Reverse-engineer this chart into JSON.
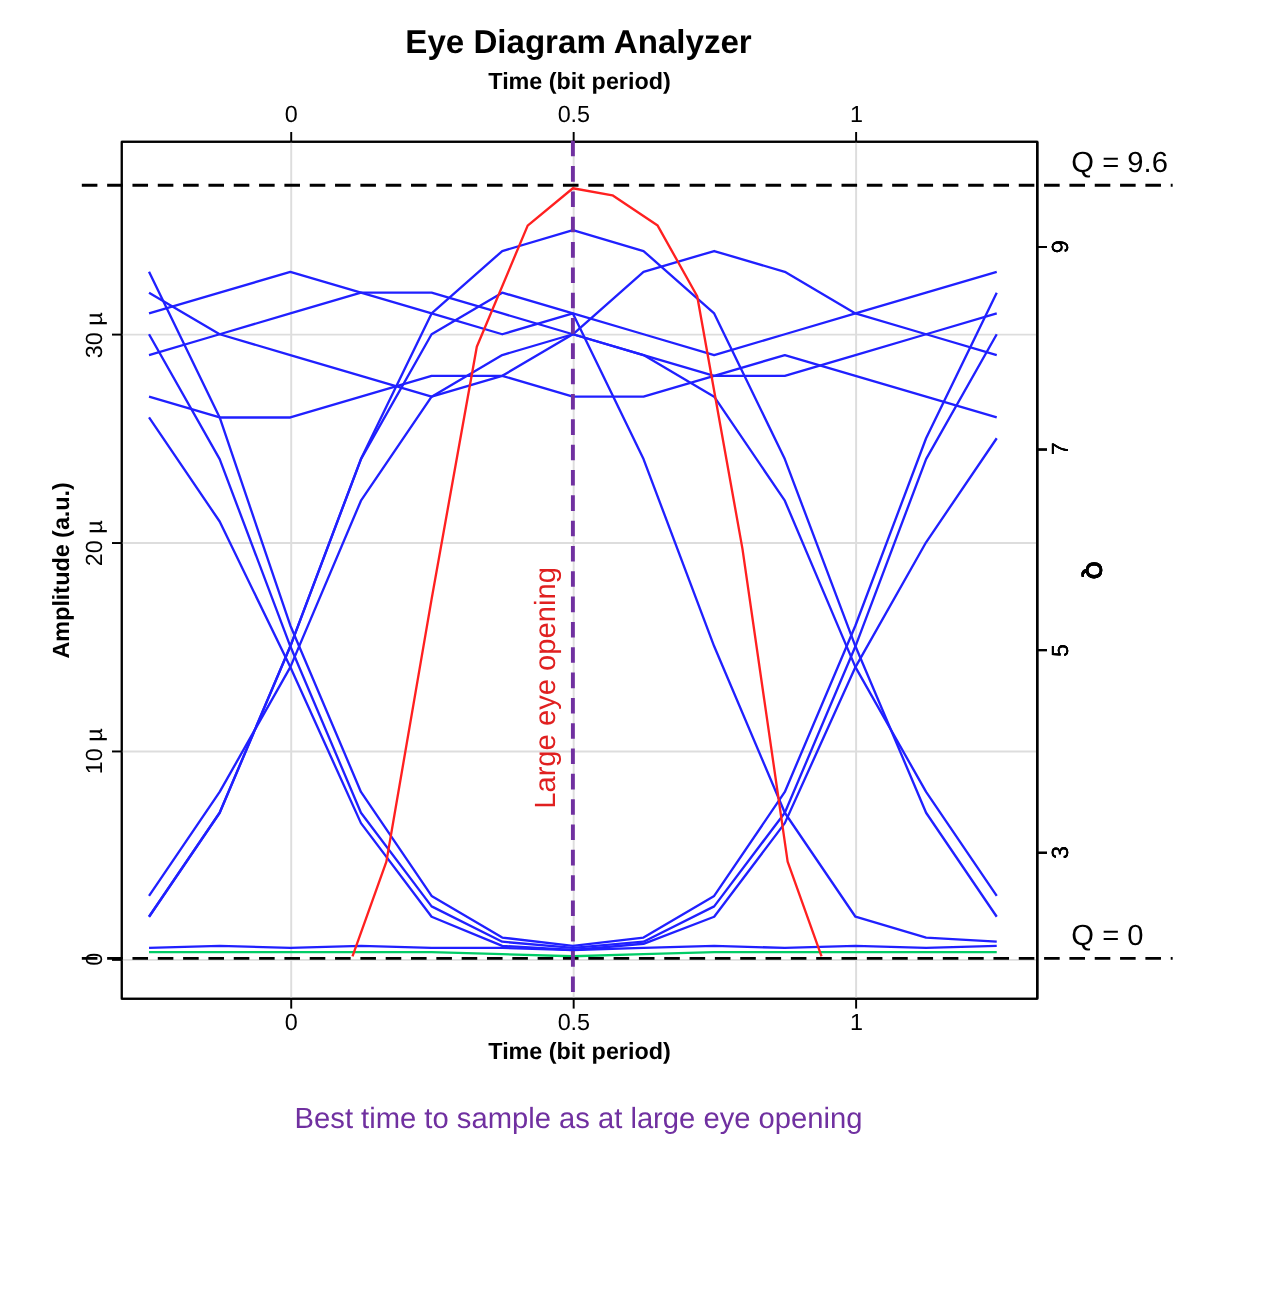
{
  "chart_data": {
    "type": "line",
    "title": "Eye Diagram Analyzer",
    "xlabel": "Time (bit period)",
    "x2label": "Time (bit period)",
    "ylabel": "Amplitude (a.u.)",
    "y2label": "Q",
    "x": [
      -0.25,
      -0.125,
      0,
      0.125,
      0.25,
      0.375,
      0.5,
      0.625,
      0.75,
      0.875,
      1,
      1.125,
      1.25
    ],
    "series": [
      {
        "color": "#2020ff",
        "values": [
          30,
          24,
          15,
          7,
          2.5,
          0.8,
          0.5,
          0.8,
          2.5,
          7,
          15,
          24,
          30
        ]
      },
      {
        "color": "#2020ff",
        "values": [
          26,
          21,
          14,
          6.5,
          2,
          0.6,
          0.4,
          0.7,
          2,
          6.5,
          14,
          20,
          25
        ]
      },
      {
        "color": "#2020ff",
        "values": [
          33,
          26,
          16,
          8,
          3,
          1,
          0.6,
          1,
          3,
          8,
          16,
          25,
          32
        ]
      },
      {
        "color": "#2020ff",
        "values": [
          2,
          7,
          15,
          24,
          31,
          34,
          35,
          34,
          31,
          24,
          15,
          7,
          2
        ]
      },
      {
        "color": "#2020ff",
        "values": [
          3,
          8,
          14,
          22,
          27,
          29,
          30,
          29,
          27,
          22,
          14,
          8,
          3
        ]
      },
      {
        "color": "#2020ff",
        "values": [
          29,
          30,
          31,
          32,
          32,
          31,
          30,
          29,
          28,
          28,
          29,
          30,
          31
        ]
      },
      {
        "color": "#2020ff",
        "values": [
          27,
          26,
          26,
          27,
          28,
          28,
          27,
          27,
          28,
          29,
          28,
          27,
          26
        ]
      },
      {
        "color": "#2020ff",
        "values": [
          32,
          30,
          29,
          28,
          27,
          28,
          30,
          33,
          34,
          33,
          31,
          30,
          29
        ]
      },
      {
        "color": "#2020ff",
        "values": [
          2,
          7,
          15,
          24,
          30,
          32,
          31,
          30,
          29,
          30,
          31,
          32,
          33
        ]
      },
      {
        "color": "#2020ff",
        "values": [
          31,
          32,
          33,
          32,
          31,
          30,
          31,
          24,
          15,
          7,
          2,
          1,
          0.8
        ]
      },
      {
        "color": "#2020ff",
        "values": [
          0.5,
          0.6,
          0.5,
          0.6,
          0.5,
          0.5,
          0.4,
          0.5,
          0.6,
          0.5,
          0.6,
          0.5,
          0.6
        ]
      },
      {
        "color": "#00cc66",
        "values": [
          0.3,
          0.3,
          0.3,
          0.3,
          0.3,
          0.2,
          0.1,
          0.2,
          0.3,
          0.3,
          0.3,
          0.3,
          0.3
        ]
      },
      {
        "color": "#ff2020",
        "axis": "y2",
        "x": [
          0.11,
          0.17,
          0.25,
          0.33,
          0.42,
          0.5,
          0.57,
          0.65,
          0.72,
          0.8,
          0.88,
          0.94
        ],
        "values": [
          1.96,
          2.9,
          5.5,
          8.0,
          9.2,
          9.57,
          9.5,
          9.2,
          8.5,
          6.0,
          2.9,
          1.96
        ]
      }
    ],
    "xlim": [
      -0.3,
      1.32
    ],
    "xticks": [
      0,
      0.5,
      1
    ],
    "x2lim": [
      -0.3,
      1.32
    ],
    "x2ticks": [
      0,
      0.5,
      1
    ],
    "ylim": [
      -1.9,
      39.3
    ],
    "yticks": [
      {
        "value": 0,
        "label": "0"
      },
      {
        "value": 10,
        "label": "10 µ"
      },
      {
        "value": 20,
        "label": "20 µ"
      },
      {
        "value": 30,
        "label": "30 µ"
      }
    ],
    "y2lim": [
      1.55,
      10.04
    ],
    "y2ticks": [
      3,
      5,
      7,
      9
    ],
    "ref_lines": [
      {
        "axis": "y2",
        "value": 9.6,
        "label": "Q = 9.6",
        "color": "#000000",
        "line_style": "dashed"
      },
      {
        "axis": "y",
        "value": 0,
        "label": "Q = 0",
        "color": "#000000",
        "line_style": "dashed"
      },
      {
        "axis": "x",
        "value": 0.5,
        "label": null,
        "color": "#7030a0",
        "line_style": "dashed"
      }
    ],
    "annotations": [
      {
        "text": "Large eye opening",
        "x": 0.5,
        "y": 13
      },
      "Best time to sample as at large eye opening"
    ],
    "grid": true,
    "marker": "none",
    "line_style": "solid"
  }
}
